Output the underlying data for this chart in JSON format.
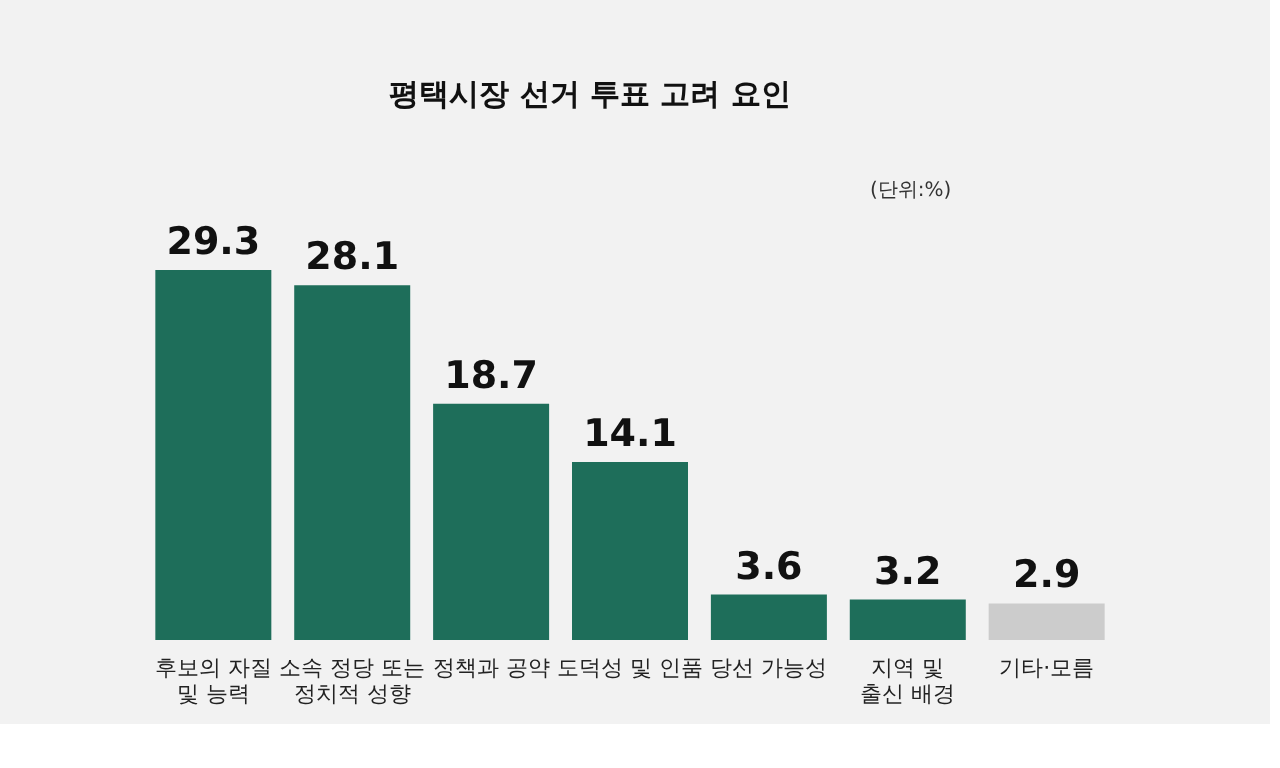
{
  "chart_data": {
    "type": "bar",
    "title": "평택시장 선거 투표 고려 요인",
    "annotations": [
      "(단위:%)"
    ],
    "categories": [
      "후보의 자질\n및 능력",
      "소속 정당 또는\n정치적 성향",
      "정책과 공약",
      "도덕성 및 인품",
      "당선 가능성",
      "지역 및\n출신 배경",
      "기타·모름"
    ],
    "values": [
      29.3,
      28.1,
      18.7,
      14.1,
      3.6,
      3.2,
      2.9
    ],
    "colors": [
      "#1e6e5a",
      "#1e6e5a",
      "#1e6e5a",
      "#1e6e5a",
      "#1e6e5a",
      "#1e6e5a",
      "#cccccc"
    ],
    "data_labels": true
  }
}
